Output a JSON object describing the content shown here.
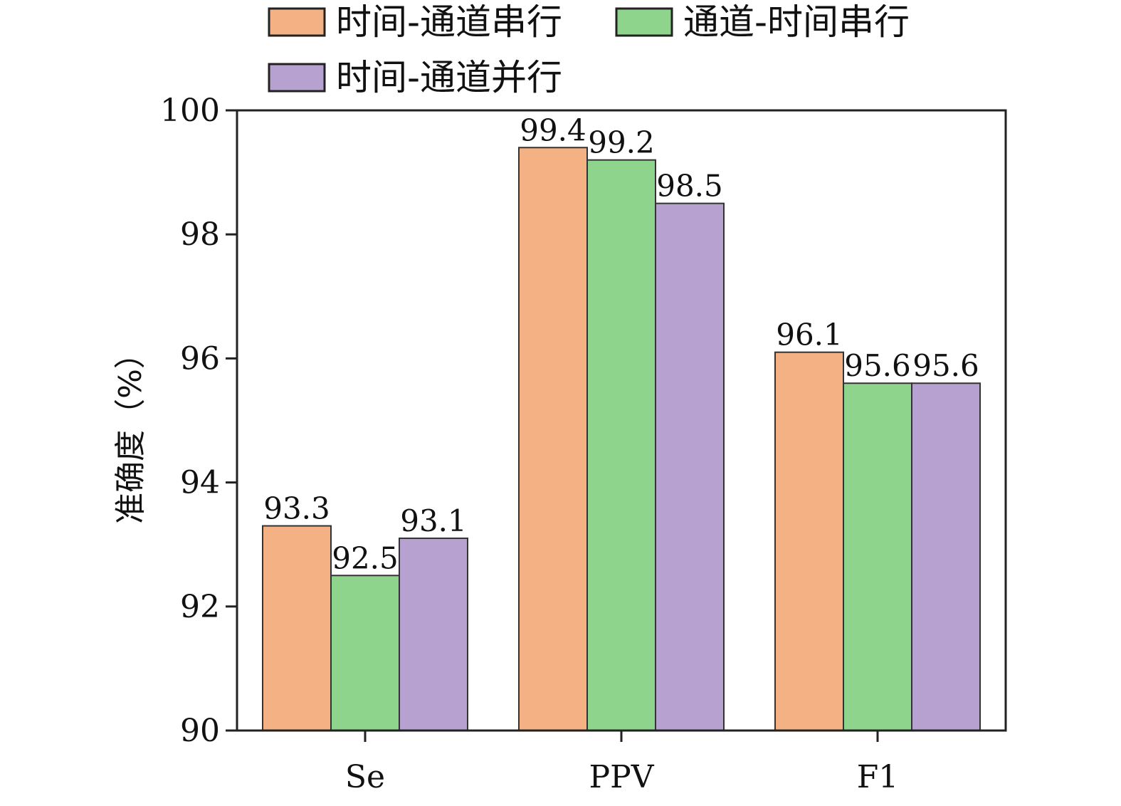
{
  "chart_data": {
    "type": "bar",
    "title": "",
    "xlabel": "",
    "ylabel": "准确度（%）",
    "categories": [
      "Se",
      "PPV",
      "F1"
    ],
    "series": [
      {
        "name": "时间-通道串行",
        "color": "#F4B183",
        "values": [
          93.3,
          99.4,
          96.1
        ]
      },
      {
        "name": "通道-时间串行",
        "color": "#8FD48C",
        "values": [
          92.5,
          99.2,
          95.6
        ]
      },
      {
        "name": "时间-通道并行",
        "color": "#B6A1D0",
        "values": [
          93.1,
          98.5,
          95.6
        ]
      }
    ],
    "data_labels": [
      [
        "93.3",
        "99.4",
        "96.1"
      ],
      [
        "92.5",
        "99.2",
        "95.6"
      ],
      [
        "93.1",
        "98.5",
        "95.6"
      ]
    ],
    "ylim": [
      90,
      100
    ],
    "yticks": [
      90,
      92,
      94,
      96,
      98,
      100
    ],
    "ytick_labels": [
      "90",
      "92",
      "94",
      "96",
      "98",
      "100"
    ],
    "grid": false,
    "legend_position": "top"
  }
}
